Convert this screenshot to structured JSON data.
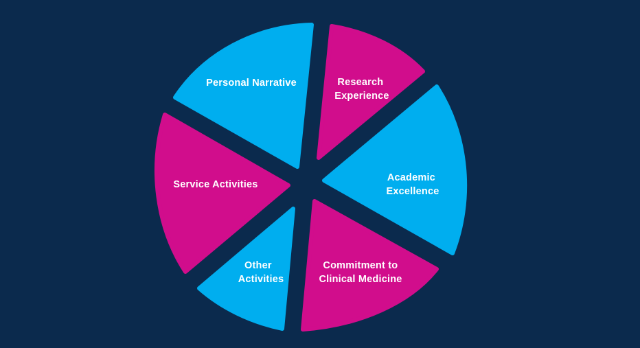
{
  "colors": {
    "background": "#0b2a4d",
    "blue": "#00aeef",
    "magenta": "#d10d8c",
    "label": "#ffffff"
  },
  "segments": [
    {
      "id": "personal-narrative",
      "lines": [
        "Personal Narrative"
      ],
      "color": "blue"
    },
    {
      "id": "research-experience",
      "lines": [
        "Research",
        "Experience"
      ],
      "color": "magenta"
    },
    {
      "id": "academic-excellence",
      "lines": [
        "Academic",
        "Excellence"
      ],
      "color": "blue"
    },
    {
      "id": "commitment-clinical-medicine",
      "lines": [
        "Commitment to",
        "Clinical Medicine"
      ],
      "color": "magenta"
    },
    {
      "id": "other-activities",
      "lines": [
        "Other",
        "Activities"
      ],
      "color": "blue"
    },
    {
      "id": "service-activities",
      "lines": [
        "Service Activities"
      ],
      "color": "magenta"
    }
  ]
}
